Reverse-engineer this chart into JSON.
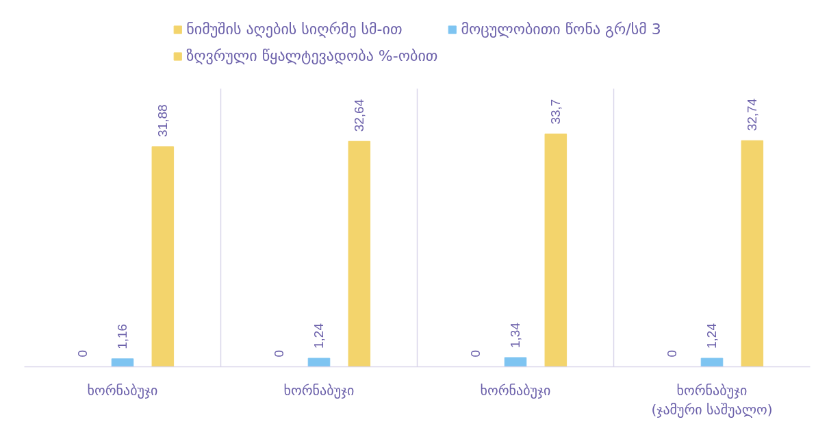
{
  "chart_data": {
    "type": "bar",
    "categories": [
      "ხორნაბუჯი",
      "ხორნაბუჯი",
      "ხორნაბუჯი",
      "ხორნაბუჯი\n(ჯამური საშუალო)"
    ],
    "series": [
      {
        "name": "ნიმუშის აღების სიღრმე სმ-ით",
        "color": "#f3d46c",
        "values": [
          0,
          0,
          0,
          0
        ],
        "value_labels": [
          "0",
          "0",
          "0",
          "0"
        ]
      },
      {
        "name": "მოცულობითი წონა გრ/სმ 3",
        "color": "#7ec4f1",
        "values": [
          1.16,
          1.24,
          1.34,
          1.24
        ],
        "value_labels": [
          "1,16",
          "1,24",
          "1,34",
          "1,24"
        ]
      },
      {
        "name": "ზღვრული წყალტევადობა %-ობით",
        "color": "#f3d46c",
        "values": [
          31.88,
          32.64,
          33.7,
          32.74
        ],
        "value_labels": [
          "31,88",
          "32,64",
          "33,7",
          "32,74"
        ]
      }
    ],
    "grid": "x",
    "legend": "top",
    "tick_labels": "x"
  }
}
